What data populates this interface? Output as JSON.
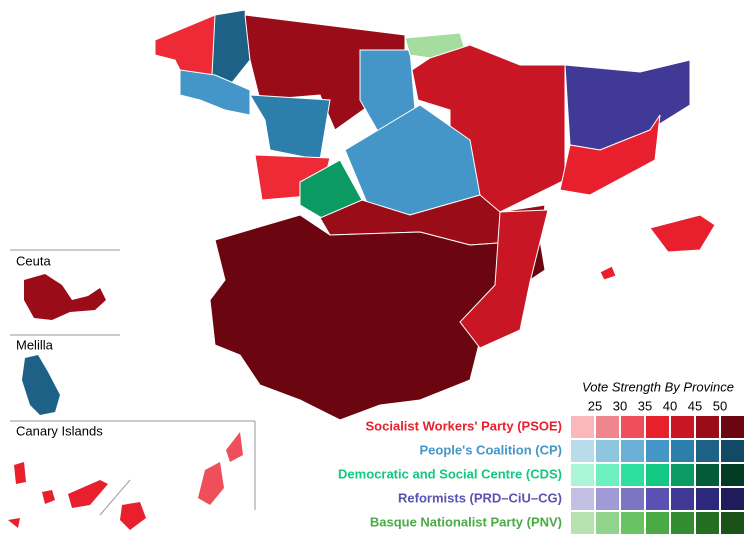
{
  "insets": [
    {
      "label": "Ceuta"
    },
    {
      "label": "Melilla"
    },
    {
      "label": "Canary Islands"
    }
  ],
  "legend": {
    "title": "Vote Strength By Province",
    "thresholds": [
      25,
      30,
      35,
      40,
      45,
      50
    ],
    "parties": [
      {
        "name": "Socialist Workers' Party (PSOE)",
        "color": "#e8202e",
        "scale": [
          "#f8b8bc",
          "#f0868d",
          "#ee4f5a",
          "#e8202e",
          "#c81624",
          "#9a0d18",
          "#6b0610"
        ]
      },
      {
        "name": "People's Coalition (CP)",
        "color": "#4596c8",
        "scale": [
          "#b8dcea",
          "#8ec6e0",
          "#6aafd6",
          "#4596c8",
          "#2c7fab",
          "#1d6286",
          "#134966"
        ]
      },
      {
        "name": "Democratic and Social Centre (CDS)",
        "color": "#12c882",
        "scale": [
          "#aaf5d6",
          "#6cf0c0",
          "#2ee0a0",
          "#12c882",
          "#0a9a62",
          "#055a3a",
          "#033a24"
        ]
      },
      {
        "name": "Reformists (PRD–CiU–CG)",
        "color": "#5a52b0",
        "scale": [
          "#c4c0e4",
          "#a09bd6",
          "#7c75c4",
          "#5a52b0",
          "#403a96",
          "#2c287a",
          "#1e1c5a"
        ]
      },
      {
        "name": "Basque Nationalist Party (PNV)",
        "color": "#4aaa44",
        "scale": [
          "#b6e2b0",
          "#8fd48a",
          "#68c462",
          "#4aaa44",
          "#348c30",
          "#246e22",
          "#1a5218"
        ]
      }
    ]
  }
}
